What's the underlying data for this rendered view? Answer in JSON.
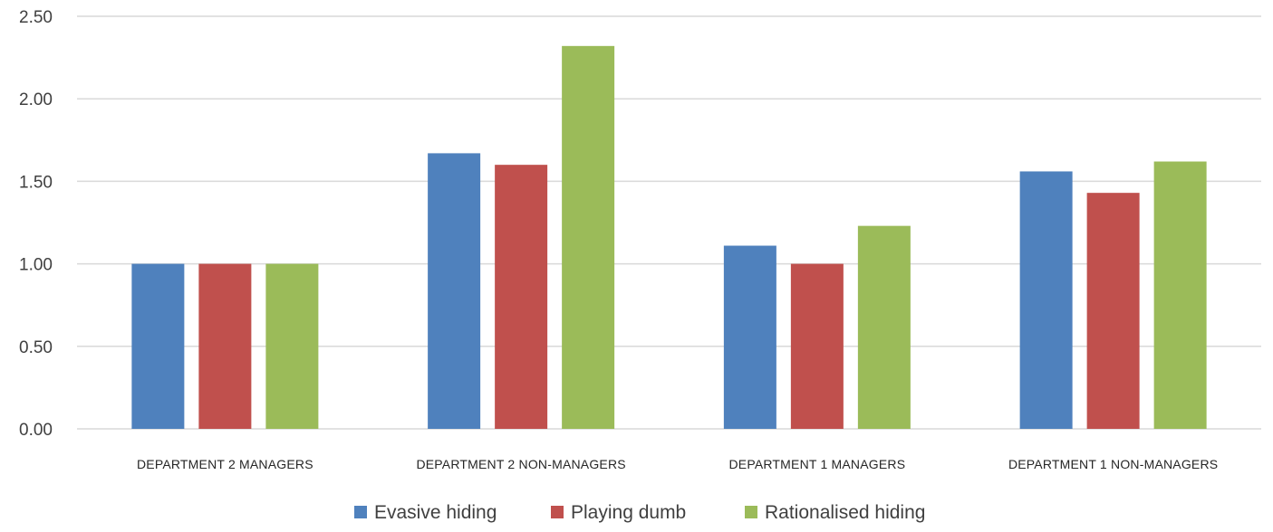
{
  "chart_data": {
    "type": "bar",
    "title": "",
    "xlabel": "",
    "ylabel": "",
    "ylim": [
      0,
      2.5
    ],
    "ytick_values": [
      0,
      0.5,
      1,
      1.5,
      2,
      2.5
    ],
    "ytick_labels": [
      "0.00",
      "0.50",
      "1.00",
      "1.50",
      "2.00",
      "2.50"
    ],
    "grid": true,
    "legend_position": "bottom",
    "categories": [
      "DEPARTMENT 2 MANAGERS",
      "DEPARTMENT 2 NON-MANAGERS",
      "DEPARTMENT 1 MANAGERS",
      "DEPARTMENT 1 NON-MANAGERS"
    ],
    "series": [
      {
        "name": "Evasive hiding",
        "color": "#4f81bd",
        "values": [
          1.0,
          1.67,
          1.11,
          1.56
        ]
      },
      {
        "name": "Playing dumb",
        "color": "#c0504d",
        "values": [
          1.0,
          1.6,
          1.0,
          1.43
        ]
      },
      {
        "name": "Rationalised hiding",
        "color": "#9bbb59",
        "values": [
          1.0,
          2.32,
          1.23,
          1.62
        ]
      }
    ]
  }
}
